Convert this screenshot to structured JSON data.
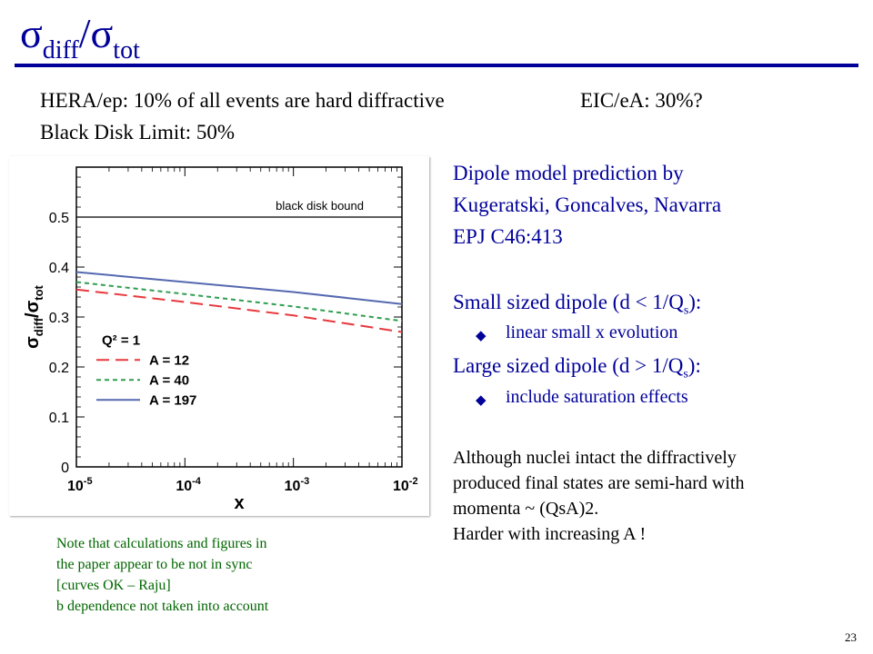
{
  "slide": {
    "title": {
      "sigma": "σ",
      "sub_diff": "diff",
      "slash": "/",
      "sub_tot": "tot"
    },
    "intro": {
      "line1_left": "HERA/ep: 10% of all events are hard diffractive",
      "line1_right": "EIC/eA: 30%?",
      "line2": "Black Disk Limit: 50%"
    },
    "right_text": {
      "pred_line1": "Dipole model prediction by",
      "pred_line2": "Kugeratski, Goncalves, Navarra",
      "pred_line3": "EPJ C46:413",
      "small_prefix": "Small sized dipole (d < 1/Q",
      "small_sub": "s",
      "small_suffix": "):",
      "small_bullet": "linear small x evolution",
      "large_prefix": "Large sized dipole (d > 1/Q",
      "large_sub": "s",
      "large_suffix": "):",
      "large_bullet": "include saturation effects",
      "bullet_glyph": "◆",
      "para_line1": "Although nuclei intact the diffractively",
      "para_line2": "produced final states are semi-hard with",
      "para_line3": "momenta ~ (QsA)2.",
      "para_line4": "Harder with increasing A !"
    },
    "note": {
      "line1": "Note that calculations and figures in",
      "line2": "the paper appear to be not in sync",
      "line3": "[curves OK – Raju]",
      "line4": "b dependence not taken into account"
    },
    "page_number": "23",
    "colors": {
      "title": "#000099",
      "accent_text": "#000099",
      "note": "#006600",
      "a12": "#e8383d",
      "a40": "#2e9e4f",
      "a197": "#5568b0"
    }
  },
  "chart_data": {
    "type": "line",
    "x_scale": "log",
    "xlim": [
      1e-05,
      0.01
    ],
    "ylim": [
      0,
      0.6
    ],
    "xlabel": "x",
    "ylabel": {
      "main": "σ",
      "sub1": "diff",
      "slash": "/",
      "main2": "σ",
      "sub2": "tot"
    },
    "x_ticks": [
      {
        "value": 1e-05,
        "base": "10",
        "exp": "-5"
      },
      {
        "value": 0.0001,
        "base": "10",
        "exp": "-4"
      },
      {
        "value": 0.001,
        "base": "10",
        "exp": "-3"
      },
      {
        "value": 0.01,
        "base": "10",
        "exp": "-2"
      }
    ],
    "y_ticks": [
      0,
      0.1,
      0.2,
      0.3,
      0.4,
      0.5
    ],
    "y_tick_labels": [
      "0",
      "0.1",
      "0.2",
      "0.3",
      "0.4",
      "0.5"
    ],
    "reference_line": {
      "y": 0.5,
      "label": "black disk bound"
    },
    "legend_title": "Q² = 1",
    "legend_position": "lower-left",
    "series": [
      {
        "name": "A = 12",
        "style": "dashed",
        "color": "#e8383d",
        "x": [
          1e-05,
          0.0001,
          0.001,
          0.01
        ],
        "y": [
          0.355,
          0.33,
          0.303,
          0.27
        ]
      },
      {
        "name": "A = 40",
        "style": "dotted",
        "color": "#2e9e4f",
        "x": [
          1e-05,
          0.0001,
          0.001,
          0.01
        ],
        "y": [
          0.37,
          0.346,
          0.321,
          0.292
        ]
      },
      {
        "name": "A = 197",
        "style": "solid",
        "color": "#5568b0",
        "x": [
          1e-05,
          0.0001,
          0.001,
          0.01
        ],
        "y": [
          0.39,
          0.37,
          0.35,
          0.326
        ]
      }
    ]
  }
}
